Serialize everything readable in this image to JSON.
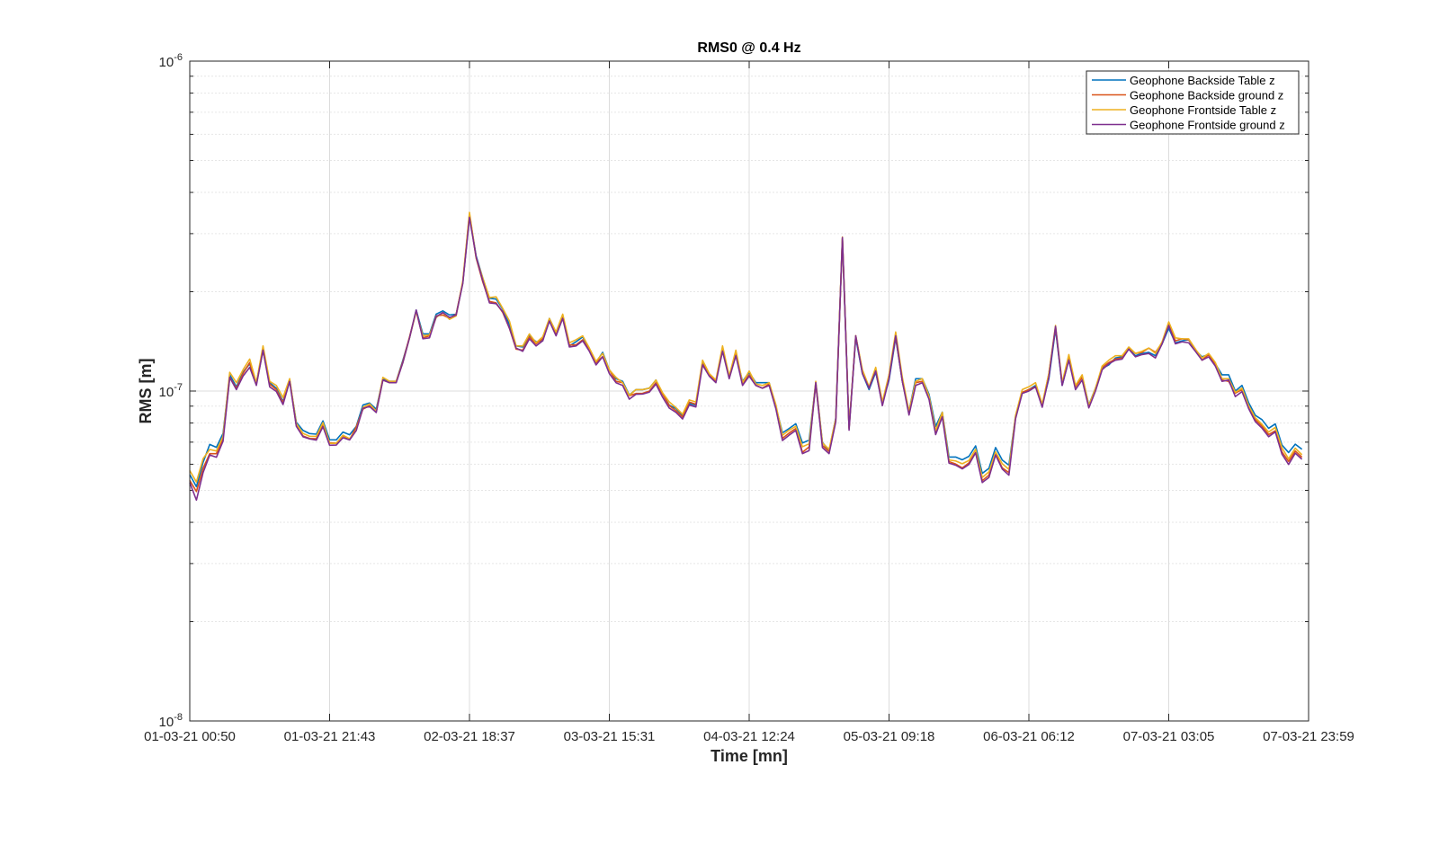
{
  "chart_data": {
    "type": "line",
    "title": "RMS0 @ 0.4 Hz",
    "xlabel": "Time [mn]",
    "ylabel": "RMS [m]",
    "yscale": "log",
    "ylim": [
      1e-08,
      1e-06
    ],
    "y_ticks": [
      {
        "base": "10",
        "exp": "-8"
      },
      {
        "base": "10",
        "exp": "-7"
      },
      {
        "base": "10",
        "exp": "-6"
      }
    ],
    "x_ticks": [
      "01-03-21 00:50",
      "01-03-21 21:43",
      "02-03-21 18:37",
      "03-03-21 15:31",
      "04-03-21 12:24",
      "05-03-21 09:18",
      "06-03-21 06:12",
      "07-03-21 03:05",
      "07-03-21 23:59"
    ],
    "grid": true,
    "legend": {
      "position": "top-right"
    },
    "x_positions": [
      0,
      1,
      2,
      3,
      4,
      5,
      6,
      7,
      8,
      9,
      10,
      11,
      12,
      13,
      14,
      15,
      16,
      17,
      18,
      19,
      20,
      21,
      22,
      23,
      24,
      25,
      26,
      27,
      28,
      29,
      30,
      31,
      32,
      33,
      34,
      35,
      36,
      37,
      38,
      39,
      40,
      41,
      42,
      43,
      44,
      45,
      46,
      47,
      48,
      49,
      50,
      51,
      52,
      53,
      54,
      55,
      56,
      57,
      58,
      59,
      60,
      61,
      62,
      63,
      64,
      65,
      66,
      67,
      68,
      69,
      70,
      71,
      72,
      73,
      74,
      75,
      76,
      77,
      78,
      79,
      80,
      81,
      82,
      83,
      84,
      85,
      86,
      87,
      88,
      89,
      90,
      91,
      92,
      93,
      94,
      95,
      96,
      97,
      98,
      99,
      100,
      101,
      102,
      103,
      104,
      105,
      106,
      107,
      108,
      109,
      110,
      111,
      112,
      113,
      114,
      115,
      116,
      117,
      118,
      119,
      120,
      121,
      122,
      123,
      124,
      125,
      126,
      127,
      128,
      129,
      130,
      131,
      132,
      133,
      134,
      135,
      136,
      137,
      138,
      139,
      140,
      141,
      142,
      143,
      144,
      145,
      146,
      147,
      148,
      149,
      150,
      151,
      152,
      153,
      154,
      155,
      156,
      157,
      158,
      159,
      160,
      161,
      162,
      163,
      164,
      165,
      166,
      167,
      168
    ],
    "series": [
      {
        "name": "Geophone Backside Table z",
        "color": "#0072BD",
        "values": [
          5.58e-08,
          5.13e-08,
          6.08e-08,
          6.89e-08,
          6.75e-08,
          7.44e-08,
          1.12e-07,
          1.03e-07,
          1.14e-07,
          1.21e-07,
          1.06e-07,
          1.34e-07,
          1.06e-07,
          1.02e-07,
          9.3e-08,
          1.08e-07,
          8.04e-08,
          7.6e-08,
          7.43e-08,
          7.4e-08,
          8.12e-08,
          7.12e-08,
          7.11e-08,
          7.51e-08,
          7.37e-08,
          7.81e-08,
          9.07e-08,
          9.2e-08,
          8.81e-08,
          1.09e-07,
          1.07e-07,
          1.07e-07,
          1.24e-07,
          1.45e-07,
          1.76e-07,
          1.49e-07,
          1.49e-07,
          1.71e-07,
          1.75e-07,
          1.7e-07,
          1.71e-07,
          2.13e-07,
          3.41e-07,
          2.57e-07,
          2.2e-07,
          1.91e-07,
          1.9e-07,
          1.77e-07,
          1.59e-07,
          1.37e-07,
          1.36e-07,
          1.47e-07,
          1.41e-07,
          1.42e-07,
          1.66e-07,
          1.5e-07,
          1.69e-07,
          1.37e-07,
          1.41e-07,
          1.46e-07,
          1.34e-07,
          1.22e-07,
          1.31e-07,
          1.16e-07,
          1.09e-07,
          1.07e-07,
          9.73e-08,
          1.01e-07,
          1.01e-07,
          1.02e-07,
          1.08e-07,
          9.81e-08,
          9.06e-08,
          8.85e-08,
          8.44e-08,
          9.17e-08,
          9.06e-08,
          1.22e-07,
          1.12e-07,
          1.07e-07,
          1.35e-07,
          1.1e-07,
          1.29e-07,
          1.07e-07,
          1.14e-07,
          1.06e-07,
          1.06e-07,
          1.06e-07,
          8.98e-08,
          7.47e-08,
          7.7e-08,
          7.96e-08,
          6.96e-08,
          7.1e-08,
          1.06e-07,
          6.99e-08,
          6.59e-08,
          8.27e-08,
          2.89e-07,
          7.72e-08,
          1.45e-07,
          1.13e-07,
          1.01e-07,
          1.14e-07,
          9.19e-08,
          1.08e-07,
          1.45e-07,
          1.07e-07,
          8.68e-08,
          1.09e-07,
          1.09e-07,
          9.78e-08,
          7.81e-08,
          8.63e-08,
          6.31e-08,
          6.31e-08,
          6.19e-08,
          6.34e-08,
          6.82e-08,
          5.63e-08,
          5.83e-08,
          6.74e-08,
          6.18e-08,
          5.96e-08,
          8.39e-08,
          9.89e-08,
          1.01e-07,
          1.04e-07,
          9.07e-08,
          1.09e-07,
          1.54e-07,
          1.04e-07,
          1.25e-07,
          1.03e-07,
          1.11e-07,
          9.07e-08,
          1.02e-07,
          1.17e-07,
          1.2e-07,
          1.26e-07,
          1.27e-07,
          1.34e-07,
          1.28e-07,
          1.3e-07,
          1.31e-07,
          1.28e-07,
          1.39e-07,
          1.55e-07,
          1.4e-07,
          1.42e-07,
          1.43e-07,
          1.33e-07,
          1.27e-07,
          1.29e-07,
          1.21e-07,
          1.12e-07,
          1.12e-07,
          1e-07,
          1.04e-07,
          9.22e-08,
          8.44e-08,
          8.19e-08,
          7.71e-08,
          7.95e-08,
          6.86e-08,
          6.51e-08,
          6.9e-08,
          6.66e-08
        ]
      },
      {
        "name": "Geophone Backside ground z",
        "color": "#D95319",
        "values": [
          5.36e-08,
          4.96e-08,
          5.83e-08,
          6.46e-08,
          6.46e-08,
          7.21e-08,
          1.1e-07,
          1.02e-07,
          1.13e-07,
          1.22e-07,
          1.05e-07,
          1.33e-07,
          1.05e-07,
          1.01e-07,
          9.22e-08,
          1.08e-07,
          7.84e-08,
          7.31e-08,
          7.18e-08,
          7.17e-08,
          7.88e-08,
          6.97e-08,
          6.95e-08,
          7.32e-08,
          7.13e-08,
          7.79e-08,
          8.81e-08,
          9.03e-08,
          8.64e-08,
          1.08e-07,
          1.06e-07,
          1.07e-07,
          1.23e-07,
          1.46e-07,
          1.75e-07,
          1.45e-07,
          1.47e-07,
          1.69e-07,
          1.7e-07,
          1.66e-07,
          1.71e-07,
          2.14e-07,
          3.44e-07,
          2.53e-07,
          2.14e-07,
          1.87e-07,
          1.85e-07,
          1.73e-07,
          1.55e-07,
          1.34e-07,
          1.33e-07,
          1.46e-07,
          1.39e-07,
          1.44e-07,
          1.65e-07,
          1.49e-07,
          1.67e-07,
          1.38e-07,
          1.38e-07,
          1.43e-07,
          1.33e-07,
          1.22e-07,
          1.27e-07,
          1.16e-07,
          1.07e-07,
          1.06e-07,
          9.68e-08,
          9.83e-08,
          9.84e-08,
          9.99e-08,
          1.06e-07,
          9.8e-08,
          9.03e-08,
          8.72e-08,
          8.35e-08,
          9.26e-08,
          9.12e-08,
          1.21e-07,
          1.12e-07,
          1.07e-07,
          1.35e-07,
          1.1e-07,
          1.31e-07,
          1.05e-07,
          1.12e-07,
          1.04e-07,
          1.02e-07,
          1.05e-07,
          9.01e-08,
          7.19e-08,
          7.46e-08,
          7.7e-08,
          6.52e-08,
          6.77e-08,
          1.05e-07,
          6.84e-08,
          6.56e-08,
          8.15e-08,
          2.9e-07,
          7.72e-08,
          1.47e-07,
          1.15e-07,
          1.02e-07,
          1.16e-07,
          9.09e-08,
          1.12e-07,
          1.46e-07,
          1.07e-07,
          8.63e-08,
          1.06e-07,
          1.07e-07,
          9.5e-08,
          7.46e-08,
          8.47e-08,
          6.11e-08,
          6.01e-08,
          5.85e-08,
          6.06e-08,
          6.52e-08,
          5.35e-08,
          5.56e-08,
          6.45e-08,
          5.85e-08,
          5.66e-08,
          8.31e-08,
          9.91e-08,
          1.01e-07,
          1.03e-07,
          9.03e-08,
          1.13e-07,
          1.56e-07,
          1.05e-07,
          1.27e-07,
          1.03e-07,
          1.1e-07,
          8.92e-08,
          1.01e-07,
          1.18e-07,
          1.22e-07,
          1.25e-07,
          1.26e-07,
          1.35e-07,
          1.3e-07,
          1.31e-07,
          1.35e-07,
          1.31e-07,
          1.4e-07,
          1.59e-07,
          1.42e-07,
          1.44e-07,
          1.43e-07,
          1.34e-07,
          1.24e-07,
          1.29e-07,
          1.21e-07,
          1.08e-07,
          1.07e-07,
          9.86e-08,
          1.01e-07,
          8.93e-08,
          8.19e-08,
          7.83e-08,
          7.38e-08,
          7.58e-08,
          6.54e-08,
          6.12e-08,
          6.58e-08,
          6.3e-08
        ]
      },
      {
        "name": "Geophone Frontside Table z",
        "color": "#EDB120",
        "values": [
          5.74e-08,
          5.3e-08,
          6.24e-08,
          6.65e-08,
          6.58e-08,
          7.29e-08,
          1.14e-07,
          1.06e-07,
          1.16e-07,
          1.25e-07,
          1.06e-07,
          1.37e-07,
          1.07e-07,
          1.04e-07,
          9.56e-08,
          1.09e-07,
          7.97e-08,
          7.44e-08,
          7.29e-08,
          7.29e-08,
          8.02e-08,
          6.94e-08,
          6.94e-08,
          7.35e-08,
          7.17e-08,
          7.6e-08,
          8.92e-08,
          9.14e-08,
          8.68e-08,
          1.1e-07,
          1.07e-07,
          1.07e-07,
          1.22e-07,
          1.45e-07,
          1.74e-07,
          1.47e-07,
          1.48e-07,
          1.67e-07,
          1.73e-07,
          1.65e-07,
          1.69e-07,
          2.16e-07,
          3.48e-07,
          2.54e-07,
          2.2e-07,
          1.92e-07,
          1.93e-07,
          1.78e-07,
          1.63e-07,
          1.37e-07,
          1.37e-07,
          1.49e-07,
          1.4e-07,
          1.46e-07,
          1.66e-07,
          1.51e-07,
          1.71e-07,
          1.4e-07,
          1.43e-07,
          1.47e-07,
          1.35e-07,
          1.23e-07,
          1.3e-07,
          1.16e-07,
          1.1e-07,
          1.06e-07,
          9.7e-08,
          1.01e-07,
          1.01e-07,
          1.02e-07,
          1.08e-07,
          9.88e-08,
          9.27e-08,
          8.91e-08,
          8.51e-08,
          9.4e-08,
          9.27e-08,
          1.24e-07,
          1.13e-07,
          1.08e-07,
          1.37e-07,
          1.11e-07,
          1.33e-07,
          1.06e-07,
          1.15e-07,
          1.05e-07,
          1.04e-07,
          1.06e-07,
          9.1e-08,
          7.34e-08,
          7.61e-08,
          7.82e-08,
          6.78e-08,
          6.92e-08,
          1.07e-07,
          6.96e-08,
          6.66e-08,
          8.24e-08,
          2.93e-07,
          7.72e-08,
          1.47e-07,
          1.16e-07,
          1.03e-07,
          1.18e-07,
          9.28e-08,
          1.12e-07,
          1.51e-07,
          1.1e-07,
          8.67e-08,
          1.07e-07,
          1.09e-07,
          9.66e-08,
          7.6e-08,
          8.62e-08,
          6.18e-08,
          6.14e-08,
          6.02e-08,
          6.16e-08,
          6.66e-08,
          5.47e-08,
          5.69e-08,
          6.54e-08,
          6.02e-08,
          5.79e-08,
          8.44e-08,
          1.01e-07,
          1.03e-07,
          1.06e-07,
          9.13e-08,
          1.13e-07,
          1.58e-07,
          1.06e-07,
          1.29e-07,
          1.04e-07,
          1.12e-07,
          9.03e-08,
          1.02e-07,
          1.19e-07,
          1.24e-07,
          1.28e-07,
          1.28e-07,
          1.36e-07,
          1.3e-07,
          1.32e-07,
          1.35e-07,
          1.3e-07,
          1.41e-07,
          1.62e-07,
          1.45e-07,
          1.44e-07,
          1.44e-07,
          1.34e-07,
          1.26e-07,
          1.3e-07,
          1.22e-07,
          1.09e-07,
          1.09e-07,
          9.91e-08,
          1.02e-07,
          9.03e-08,
          8.3e-08,
          7.93e-08,
          7.51e-08,
          7.76e-08,
          6.73e-08,
          6.23e-08,
          6.71e-08,
          6.41e-08
        ]
      },
      {
        "name": "Geophone Frontside ground z",
        "color": "#7E2F8E",
        "values": [
          5.28e-08,
          4.67e-08,
          5.66e-08,
          6.4e-08,
          6.3e-08,
          7.05e-08,
          1.1e-07,
          1.01e-07,
          1.11e-07,
          1.18e-07,
          1.04e-07,
          1.33e-07,
          1.03e-07,
          9.97e-08,
          9.1e-08,
          1.07e-07,
          7.82e-08,
          7.27e-08,
          7.16e-08,
          7.1e-08,
          7.8e-08,
          6.85e-08,
          6.86e-08,
          7.22e-08,
          7.11e-08,
          7.59e-08,
          8.86e-08,
          8.98e-08,
          8.61e-08,
          1.08e-07,
          1.06e-07,
          1.06e-07,
          1.22e-07,
          1.45e-07,
          1.76e-07,
          1.44e-07,
          1.45e-07,
          1.68e-07,
          1.73e-07,
          1.67e-07,
          1.7e-07,
          2.12e-07,
          3.36e-07,
          2.55e-07,
          2.16e-07,
          1.85e-07,
          1.84e-07,
          1.74e-07,
          1.55e-07,
          1.35e-07,
          1.32e-07,
          1.44e-07,
          1.37e-07,
          1.42e-07,
          1.63e-07,
          1.47e-07,
          1.66e-07,
          1.36e-07,
          1.37e-07,
          1.42e-07,
          1.32e-07,
          1.2e-07,
          1.27e-07,
          1.13e-07,
          1.06e-07,
          1.04e-07,
          9.45e-08,
          9.78e-08,
          9.79e-08,
          9.92e-08,
          1.05e-07,
          9.58e-08,
          8.88e-08,
          8.62e-08,
          8.23e-08,
          9.07e-08,
          8.95e-08,
          1.2e-07,
          1.11e-07,
          1.06e-07,
          1.32e-07,
          1.09e-07,
          1.28e-07,
          1.04e-07,
          1.11e-07,
          1.04e-07,
          1.02e-07,
          1.04e-07,
          8.85e-08,
          7.08e-08,
          7.35e-08,
          7.6e-08,
          6.46e-08,
          6.6e-08,
          1.06e-07,
          6.74e-08,
          6.46e-08,
          8.06e-08,
          2.92e-07,
          7.61e-08,
          1.47e-07,
          1.13e-07,
          1.02e-07,
          1.15e-07,
          9.03e-08,
          1.09e-07,
          1.47e-07,
          1.07e-07,
          8.46e-08,
          1.04e-07,
          1.06e-07,
          9.45e-08,
          7.38e-08,
          8.35e-08,
          6.05e-08,
          5.96e-08,
          5.81e-08,
          5.99e-08,
          6.5e-08,
          5.28e-08,
          5.47e-08,
          6.4e-08,
          5.8e-08,
          5.56e-08,
          8.24e-08,
          9.84e-08,
          1e-07,
          1.03e-07,
          8.93e-08,
          1.1e-07,
          1.57e-07,
          1.04e-07,
          1.24e-07,
          1.01e-07,
          1.08e-07,
          8.89e-08,
          1e-07,
          1.16e-07,
          1.21e-07,
          1.24e-07,
          1.25e-07,
          1.34e-07,
          1.27e-07,
          1.29e-07,
          1.3e-07,
          1.26e-07,
          1.39e-07,
          1.58e-07,
          1.39e-07,
          1.41e-07,
          1.4e-07,
          1.32e-07,
          1.24e-07,
          1.27e-07,
          1.19e-07,
          1.07e-07,
          1.08e-07,
          9.62e-08,
          9.96e-08,
          8.85e-08,
          8.08e-08,
          7.72e-08,
          7.27e-08,
          7.52e-08,
          6.44e-08,
          5.99e-08,
          6.48e-08,
          6.21e-08
        ]
      }
    ]
  }
}
